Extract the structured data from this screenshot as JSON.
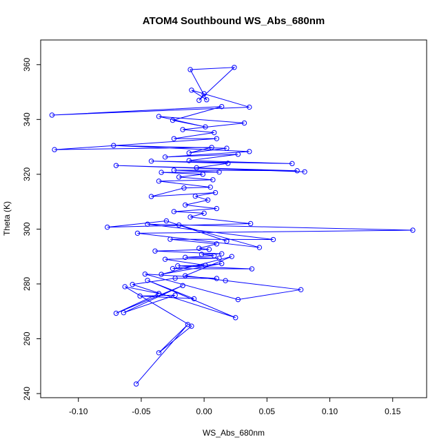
{
  "chart_data": {
    "type": "line",
    "title": "ATOM4 Southbound WS_Abs_680nm",
    "xlabel": "WS_Abs_680nm",
    "ylabel": "Theta (K)",
    "xlim": [
      -0.13,
      0.177
    ],
    "ylim": [
      238.5,
      369
    ],
    "xticks": [
      -0.1,
      -0.05,
      0.0,
      0.05,
      0.1,
      0.15
    ],
    "xtick_labels": [
      "-0.10",
      "-0.05",
      "0.00",
      "0.05",
      "0.10",
      "0.15"
    ],
    "yticks": [
      240,
      260,
      280,
      300,
      320,
      340,
      360
    ],
    "ytick_labels": [
      "240",
      "260",
      "280",
      "300",
      "320",
      "340",
      "360"
    ],
    "grid": false,
    "legend": "none",
    "series_color": "#0000ff",
    "points": [
      [
        -0.054,
        243.5
      ],
      [
        -0.013,
        265.2
      ],
      [
        -0.036,
        254.9
      ],
      [
        -0.01,
        264.6
      ],
      [
        -0.063,
        279.0
      ],
      [
        -0.036,
        276.5
      ],
      [
        -0.07,
        269.3
      ],
      [
        -0.017,
        279.4
      ],
      [
        -0.064,
        269.5
      ],
      [
        -0.023,
        275.9
      ],
      [
        -0.051,
        275.6
      ],
      [
        -0.008,
        274.6
      ],
      [
        -0.045,
        281.3
      ],
      [
        0.025,
        267.7
      ],
      [
        -0.057,
        279.8
      ],
      [
        -0.023,
        282.1
      ],
      [
        0.01,
        282.0
      ],
      [
        -0.047,
        283.6
      ],
      [
        0.027,
        274.3
      ],
      [
        0.077,
        277.9
      ],
      [
        0.017,
        281.2
      ],
      [
        -0.015,
        283.0
      ],
      [
        0.022,
        290.0
      ],
      [
        -0.034,
        283.5
      ],
      [
        0.014,
        287.4
      ],
      [
        -0.025,
        285.6
      ],
      [
        0.038,
        285.5
      ],
      [
        -0.021,
        286.6
      ],
      [
        0.001,
        286.8
      ],
      [
        -0.031,
        289.0
      ],
      [
        0.012,
        289.4
      ],
      [
        -0.015,
        289.7
      ],
      [
        0.008,
        290.3
      ],
      [
        -0.002,
        290.8
      ],
      [
        0.014,
        291.0
      ],
      [
        -0.039,
        292.0
      ],
      [
        0.004,
        292.6
      ],
      [
        -0.004,
        293.0
      ],
      [
        0.01,
        294.6
      ],
      [
        -0.027,
        296.3
      ],
      [
        0.055,
        296.2
      ],
      [
        -0.045,
        301.8
      ],
      [
        0.166,
        299.6
      ],
      [
        -0.053,
        298.5
      ],
      [
        0.044,
        293.3
      ],
      [
        -0.02,
        301.5
      ],
      [
        0.018,
        295.6
      ],
      [
        -0.03,
        303.0
      ],
      [
        -0.077,
        300.7
      ],
      [
        0.037,
        302.0
      ],
      [
        -0.011,
        304.4
      ],
      [
        0.0,
        305.8
      ],
      [
        -0.024,
        306.4
      ],
      [
        0.01,
        307.5
      ],
      [
        -0.015,
        308.8
      ],
      [
        0.003,
        310.6
      ],
      [
        -0.007,
        312.0
      ],
      [
        0.009,
        313.3
      ],
      [
        -0.042,
        311.9
      ],
      [
        -0.016,
        315.0
      ],
      [
        0.005,
        315.3
      ],
      [
        -0.036,
        317.5
      ],
      [
        0.007,
        318.0
      ],
      [
        -0.02,
        319.0
      ],
      [
        -0.001,
        320.0
      ],
      [
        -0.034,
        320.7
      ],
      [
        0.012,
        320.8
      ],
      [
        -0.024,
        321.5
      ],
      [
        0.074,
        321.3
      ],
      [
        -0.07,
        323.2
      ],
      [
        0.08,
        320.9
      ],
      [
        -0.006,
        322.4
      ],
      [
        0.019,
        324.0
      ],
      [
        -0.042,
        324.8
      ],
      [
        0.07,
        323.9
      ],
      [
        -0.012,
        325.0
      ],
      [
        0.027,
        327.3
      ],
      [
        -0.031,
        326.3
      ],
      [
        0.036,
        328.3
      ],
      [
        -0.072,
        330.5
      ],
      [
        0.018,
        329.5
      ],
      [
        -0.012,
        327.8
      ],
      [
        0.006,
        329.8
      ],
      [
        -0.119,
        329.0
      ],
      [
        0.01,
        333.0
      ],
      [
        -0.024,
        333.0
      ],
      [
        0.008,
        335.2
      ],
      [
        -0.017,
        336.3
      ],
      [
        0.032,
        338.7
      ],
      [
        -0.036,
        341.1
      ],
      [
        0.001,
        337.3
      ],
      [
        -0.025,
        339.7
      ],
      [
        0.014,
        344.7
      ],
      [
        -0.121,
        341.6
      ],
      [
        0.036,
        344.5
      ],
      [
        -0.01,
        350.7
      ],
      [
        0.002,
        347.2
      ],
      [
        -0.011,
        358.2
      ],
      [
        0.024,
        359.0
      ],
      [
        -0.004,
        347.0
      ],
      [
        0.0,
        349.4
      ]
    ]
  }
}
